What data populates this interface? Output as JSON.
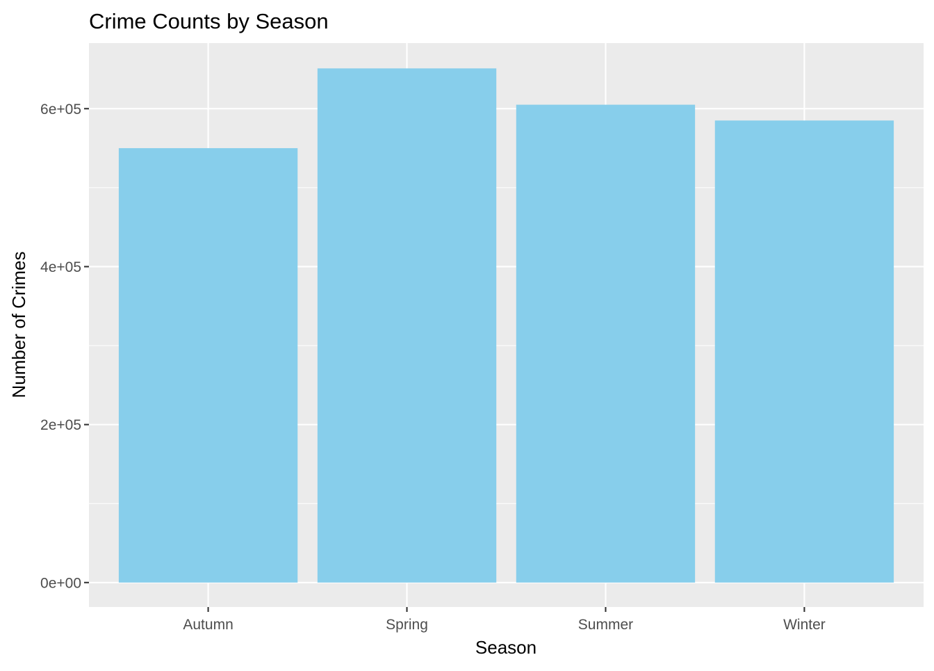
{
  "chart_data": {
    "type": "bar",
    "title": "Crime Counts by Season",
    "xlabel": "Season",
    "ylabel": "Number of Crimes",
    "categories": [
      "Autumn",
      "Spring",
      "Summer",
      "Winter"
    ],
    "values": [
      550000,
      651000,
      605000,
      585000
    ],
    "ylim": [
      -31000,
      683000
    ],
    "y_ticks": [
      0,
      200000,
      400000,
      600000
    ],
    "y_tick_labels": [
      "0e+00",
      "2e+05",
      "4e+05",
      "6e+05"
    ],
    "bar_color": "#87CEEB",
    "panel_background": "#EBEBEB",
    "grid": true,
    "legend": "none"
  }
}
